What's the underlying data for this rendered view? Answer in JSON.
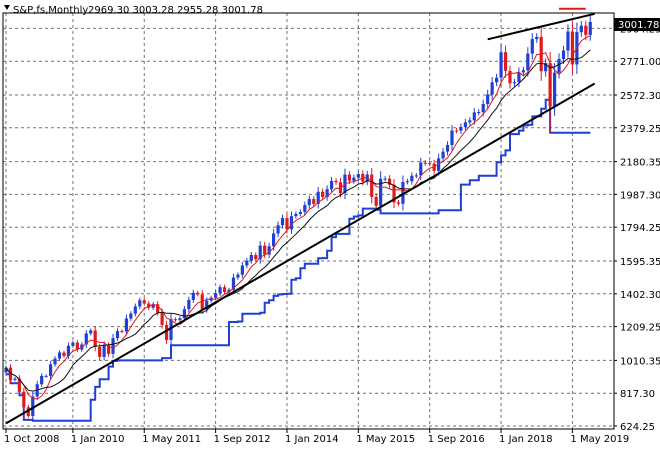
{
  "header": {
    "symbol": "S&P,fs,Monthly",
    "ohlc": "2969.30 3003.28 2955.28 3001.78"
  },
  "colors": {
    "up": "#1f3fd6",
    "down": "#e01a1a",
    "fast_ma": "#e01a1a",
    "slow_ma": "#111111",
    "support_line": "#1f3fd6",
    "grid": "#000000",
    "price_label_bg": "#000000",
    "price_label_fg": "#ffffff"
  },
  "chart_data": {
    "type": "candlestick",
    "timeframe": "Monthly",
    "start": "2008-10",
    "yticks": [
      "3001.78",
      "2964.25",
      "2771.00",
      "2572.30",
      "2379.25",
      "2180.35",
      "1987.30",
      "1794.25",
      "1595.35",
      "1402.30",
      "1209.25",
      "1010.35",
      "817.30",
      "624.25"
    ],
    "ylim": [
      624.25,
      3001.78
    ],
    "xticks": [
      {
        "label": "1 Oct 2008",
        "month_index": 0
      },
      {
        "label": "1 Jan 2010",
        "month_index": 15
      },
      {
        "label": "1 May 2011",
        "month_index": 31
      },
      {
        "label": "1 Sep 2012",
        "month_index": 47
      },
      {
        "label": "1 Jan 2014",
        "month_index": 63
      },
      {
        "label": "1 May 2015",
        "month_index": 79
      },
      {
        "label": "1 Sep 2016",
        "month_index": 95
      },
      {
        "label": "1 Jan 2018",
        "month_index": 111
      },
      {
        "label": "1 May 2019",
        "month_index": 127
      }
    ],
    "last_price": "3001.78",
    "closes": [
      968,
      896,
      903,
      826,
      735,
      683,
      798,
      870,
      919,
      919,
      987,
      1021,
      1057,
      1036,
      1096,
      1115,
      1074,
      1104,
      1169,
      1187,
      1090,
      1031,
      1101,
      1049,
      1141,
      1183,
      1181,
      1257,
      1286,
      1328,
      1364,
      1345,
      1320,
      1341,
      1292,
      1219,
      1131,
      1253,
      1247,
      1258,
      1312,
      1366,
      1408,
      1398,
      1310,
      1362,
      1379,
      1406,
      1441,
      1413,
      1426,
      1498,
      1515,
      1569,
      1597,
      1631,
      1606,
      1686,
      1633,
      1682,
      1757,
      1806,
      1848,
      1782,
      1859,
      1872,
      1884,
      1924,
      1960,
      1931,
      2003,
      1972,
      2018,
      2067,
      2059,
      1995,
      2104,
      2068,
      2086,
      2107,
      2063,
      2104,
      1972,
      1920,
      2079,
      2080,
      2044,
      1940,
      1932,
      2060,
      2065,
      2097,
      2099,
      2174,
      2171,
      2168,
      2126,
      2199,
      2239,
      2278,
      2363,
      2362,
      2384,
      2411,
      2423,
      2470,
      2472,
      2519,
      2575,
      2647,
      2674,
      2824,
      2714,
      2641,
      2648,
      2705,
      2718,
      2816,
      2901,
      2914,
      2712,
      2760,
      2506,
      2704,
      2784,
      2834,
      2946,
      2752,
      2942,
      2980,
      2926,
      3002
    ],
    "annotations": [
      {
        "type": "trendline",
        "from": {
          "month_index": 0,
          "value": 640
        },
        "to": {
          "month_index": 132,
          "value": 2640
        },
        "color": "#000000"
      },
      {
        "type": "trendline",
        "from": {
          "month_index": 108,
          "value": 2900
        },
        "to": {
          "month_index": 132,
          "value": 3050
        },
        "color": "#000000"
      },
      {
        "type": "hline",
        "month_from": 124,
        "month_to": 130,
        "value": 3080,
        "color": "#e01a1a"
      }
    ]
  }
}
